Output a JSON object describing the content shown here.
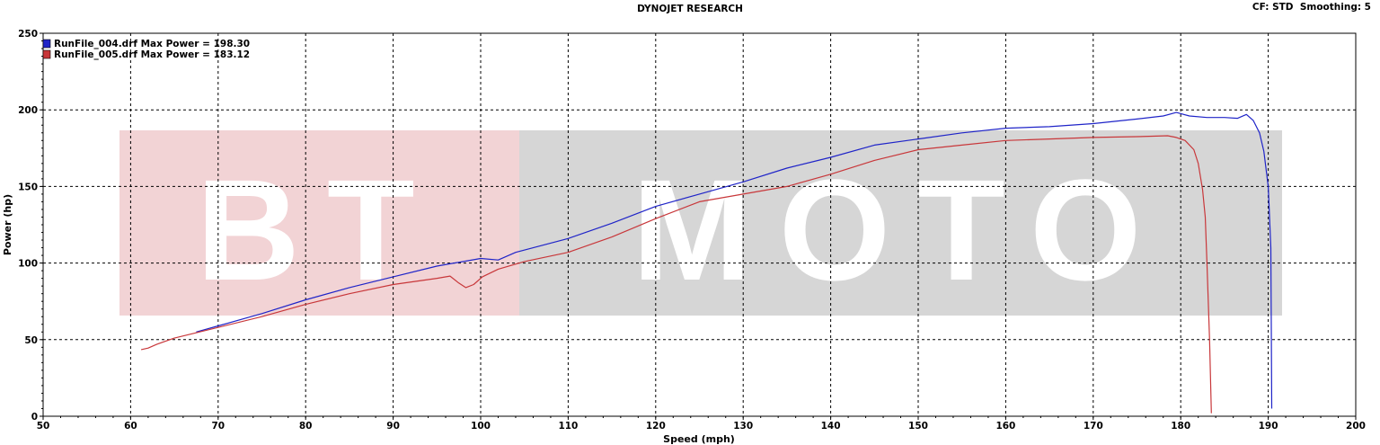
{
  "header": {
    "title": "DYNOJET RESEARCH",
    "settings": "CF: STD  Smoothing: 5"
  },
  "watermark": {
    "text_left": "BT",
    "text_right": "MOTO",
    "left_color": "#f2d3d5",
    "right_color": "#d6d6d6"
  },
  "chart_data": {
    "type": "line",
    "title": "DYNOJET RESEARCH",
    "xlabel": "Speed (mph)",
    "ylabel": "Power (hp)",
    "xlim": [
      50,
      200
    ],
    "ylim": [
      0,
      250
    ],
    "x_ticks": [
      50,
      60,
      70,
      80,
      90,
      100,
      110,
      120,
      130,
      140,
      150,
      160,
      170,
      180,
      190,
      200
    ],
    "y_ticks": [
      0,
      50,
      100,
      150,
      200,
      250
    ],
    "grid": true,
    "legend_position": "top-left",
    "series": [
      {
        "name": "RunFile_004.drf Max Power = 198.30",
        "color": "#1f24c8",
        "points": [
          [
            67.5,
            55
          ],
          [
            70,
            59
          ],
          [
            75,
            67
          ],
          [
            80,
            76
          ],
          [
            85,
            84
          ],
          [
            90,
            91
          ],
          [
            95,
            98
          ],
          [
            100,
            103
          ],
          [
            102,
            102
          ],
          [
            104,
            107
          ],
          [
            110,
            116
          ],
          [
            115,
            126
          ],
          [
            120,
            137
          ],
          [
            125,
            145
          ],
          [
            130,
            153
          ],
          [
            135,
            162
          ],
          [
            140,
            169
          ],
          [
            145,
            177
          ],
          [
            150,
            181
          ],
          [
            155,
            185
          ],
          [
            160,
            188
          ],
          [
            165,
            189
          ],
          [
            170,
            191
          ],
          [
            175,
            194
          ],
          [
            178,
            196
          ],
          [
            179.5,
            198.3
          ],
          [
            181,
            196
          ],
          [
            183,
            195
          ],
          [
            185,
            195
          ],
          [
            186.5,
            194.5
          ],
          [
            187.5,
            197
          ],
          [
            188.3,
            193
          ],
          [
            189,
            185
          ],
          [
            189.5,
            173
          ],
          [
            190,
            150
          ],
          [
            190.3,
            110
          ],
          [
            190.35,
            60
          ],
          [
            190.4,
            5
          ]
        ]
      },
      {
        "name": "RunFile_005.drf Max Power = 183.12",
        "color": "#c8373a",
        "points": [
          [
            61.2,
            43.5
          ],
          [
            62,
            44.5
          ],
          [
            63,
            47
          ],
          [
            65,
            51
          ],
          [
            70,
            58
          ],
          [
            75,
            65
          ],
          [
            80,
            73
          ],
          [
            85,
            80
          ],
          [
            90,
            86
          ],
          [
            95,
            90
          ],
          [
            96.5,
            91.5
          ],
          [
            97.5,
            87
          ],
          [
            98.3,
            84
          ],
          [
            99.2,
            86
          ],
          [
            100.2,
            91
          ],
          [
            102,
            96
          ],
          [
            105,
            101
          ],
          [
            110,
            107
          ],
          [
            115,
            117
          ],
          [
            120,
            129
          ],
          [
            125,
            140
          ],
          [
            130,
            145
          ],
          [
            135,
            150
          ],
          [
            140,
            158
          ],
          [
            145,
            167
          ],
          [
            150,
            174
          ],
          [
            155,
            177
          ],
          [
            160,
            180
          ],
          [
            165,
            181
          ],
          [
            170,
            182
          ],
          [
            175,
            182.5
          ],
          [
            178.5,
            183.12
          ],
          [
            179.5,
            182
          ],
          [
            180.5,
            180
          ],
          [
            181.5,
            174
          ],
          [
            182,
            165
          ],
          [
            182.5,
            148
          ],
          [
            182.8,
            130
          ],
          [
            183,
            100
          ],
          [
            183.3,
            50
          ],
          [
            183.5,
            2
          ]
        ]
      }
    ]
  }
}
